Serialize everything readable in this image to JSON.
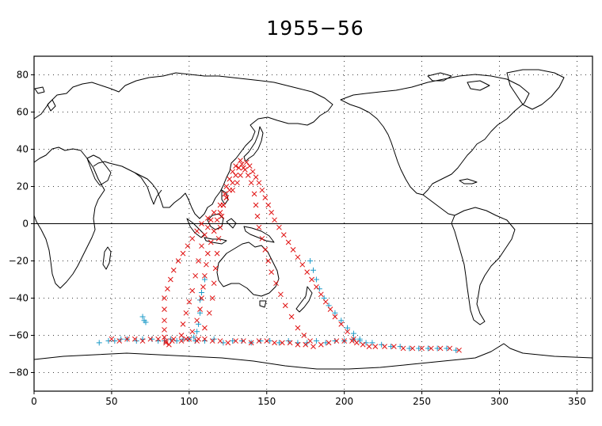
{
  "chart_data": {
    "type": "scatter",
    "title": "1955−56",
    "xlabel": "",
    "ylabel": "",
    "xlim": [
      0,
      360
    ],
    "ylim": [
      -90,
      90
    ],
    "x_ticks": [
      "0",
      "50",
      "100",
      "150",
      "200",
      "250",
      "300",
      "350"
    ],
    "x_tick_values": [
      0,
      50,
      100,
      150,
      200,
      250,
      300,
      350
    ],
    "y_ticks": [
      "80",
      "60",
      "40",
      "20",
      "0",
      "−20",
      "−40",
      "−60",
      "−80"
    ],
    "y_tick_values": [
      80,
      60,
      40,
      20,
      0,
      -20,
      -40,
      -60,
      -80
    ],
    "grid": true,
    "legend": "none",
    "series": [
      {
        "marker": "plus",
        "color": "#1e9bc8",
        "points": [
          [
            42,
            -64
          ],
          [
            48,
            -63
          ],
          [
            52,
            -63
          ],
          [
            56,
            -62
          ],
          [
            60,
            -62
          ],
          [
            66,
            -63
          ],
          [
            70,
            -62
          ],
          [
            70,
            -50
          ],
          [
            71,
            -52
          ],
          [
            72,
            -53
          ],
          [
            76,
            -62
          ],
          [
            80,
            -63
          ],
          [
            84,
            -63
          ],
          [
            88,
            -62
          ],
          [
            92,
            -63
          ],
          [
            96,
            -62
          ],
          [
            100,
            -62
          ],
          [
            103,
            -61
          ],
          [
            105,
            -58
          ],
          [
            106,
            -54
          ],
          [
            107,
            -48
          ],
          [
            107,
            -41
          ],
          [
            108,
            -37
          ],
          [
            110,
            -30
          ],
          [
            104,
            -63
          ],
          [
            110,
            -63
          ],
          [
            116,
            -62
          ],
          [
            122,
            -64
          ],
          [
            128,
            -63
          ],
          [
            134,
            -63
          ],
          [
            140,
            -64
          ],
          [
            146,
            -63
          ],
          [
            152,
            -63
          ],
          [
            158,
            -64
          ],
          [
            164,
            -63
          ],
          [
            170,
            -64
          ],
          [
            176,
            -64
          ],
          [
            182,
            -63
          ],
          [
            188,
            -64
          ],
          [
            194,
            -63
          ],
          [
            200,
            -63
          ],
          [
            206,
            -62
          ],
          [
            210,
            -63
          ],
          [
            214,
            -64
          ],
          [
            218,
            -64
          ],
          [
            224,
            -65
          ],
          [
            230,
            -66
          ],
          [
            236,
            -66
          ],
          [
            242,
            -67
          ],
          [
            248,
            -67
          ],
          [
            254,
            -67
          ],
          [
            260,
            -67
          ],
          [
            266,
            -67
          ],
          [
            272,
            -68
          ],
          [
            178,
            -20
          ],
          [
            180,
            -25
          ],
          [
            182,
            -30
          ],
          [
            184,
            -35
          ],
          [
            187,
            -40
          ],
          [
            190,
            -44
          ],
          [
            194,
            -48
          ],
          [
            198,
            -52
          ],
          [
            202,
            -56
          ],
          [
            206,
            -59
          ],
          [
            210,
            -62
          ]
        ]
      },
      {
        "marker": "x",
        "color": "#e01010",
        "points": [
          [
            50,
            -62
          ],
          [
            55,
            -63
          ],
          [
            60,
            -62
          ],
          [
            65,
            -62
          ],
          [
            70,
            -63
          ],
          [
            75,
            -62
          ],
          [
            80,
            -62
          ],
          [
            85,
            -63
          ],
          [
            90,
            -62
          ],
          [
            95,
            -63
          ],
          [
            100,
            -62
          ],
          [
            105,
            -63
          ],
          [
            110,
            -62
          ],
          [
            115,
            -63
          ],
          [
            120,
            -63
          ],
          [
            125,
            -64
          ],
          [
            130,
            -63
          ],
          [
            135,
            -63
          ],
          [
            140,
            -64
          ],
          [
            145,
            -63
          ],
          [
            150,
            -63
          ],
          [
            155,
            -64
          ],
          [
            160,
            -64
          ],
          [
            165,
            -64
          ],
          [
            170,
            -65
          ],
          [
            175,
            -65
          ],
          [
            180,
            -66
          ],
          [
            185,
            -65
          ],
          [
            190,
            -64
          ],
          [
            195,
            -63
          ],
          [
            200,
            -63
          ],
          [
            205,
            -63
          ],
          [
            208,
            -64
          ],
          [
            212,
            -65
          ],
          [
            216,
            -66
          ],
          [
            220,
            -66
          ],
          [
            226,
            -66
          ],
          [
            232,
            -66
          ],
          [
            238,
            -67
          ],
          [
            244,
            -67
          ],
          [
            250,
            -67
          ],
          [
            256,
            -67
          ],
          [
            262,
            -67
          ],
          [
            268,
            -67
          ],
          [
            274,
            -68
          ],
          [
            85,
            -64
          ],
          [
            87,
            -65
          ],
          [
            89,
            -63
          ],
          [
            84,
            -61
          ],
          [
            84,
            -57
          ],
          [
            84,
            -52
          ],
          [
            84,
            -46
          ],
          [
            84,
            -40
          ],
          [
            86,
            -35
          ],
          [
            88,
            -30
          ],
          [
            90,
            -25
          ],
          [
            93,
            -20
          ],
          [
            96,
            -16
          ],
          [
            99,
            -12
          ],
          [
            102,
            -8
          ],
          [
            105,
            -4
          ],
          [
            108,
            0
          ],
          [
            112,
            3
          ],
          [
            116,
            6
          ],
          [
            120,
            10
          ],
          [
            124,
            14
          ],
          [
            128,
            18
          ],
          [
            131,
            22
          ],
          [
            133,
            26
          ],
          [
            135,
            30
          ],
          [
            137,
            33
          ],
          [
            139,
            31
          ],
          [
            141,
            28
          ],
          [
            143,
            25
          ],
          [
            145,
            22
          ],
          [
            147,
            18
          ],
          [
            149,
            14
          ],
          [
            151,
            10
          ],
          [
            153,
            6
          ],
          [
            155,
            2
          ],
          [
            158,
            -2
          ],
          [
            161,
            -6
          ],
          [
            164,
            -10
          ],
          [
            167,
            -14
          ],
          [
            170,
            -18
          ],
          [
            173,
            -22
          ],
          [
            176,
            -26
          ],
          [
            179,
            -30
          ],
          [
            182,
            -34
          ],
          [
            185,
            -38
          ],
          [
            188,
            -42
          ],
          [
            191,
            -46
          ],
          [
            194,
            -50
          ],
          [
            198,
            -54
          ],
          [
            202,
            -58
          ],
          [
            206,
            -62
          ],
          [
            98,
            -62
          ],
          [
            102,
            -58
          ],
          [
            105,
            -52
          ],
          [
            107,
            -46
          ],
          [
            108,
            -40
          ],
          [
            109,
            -34
          ],
          [
            110,
            -28
          ],
          [
            111,
            -22
          ],
          [
            112,
            -16
          ],
          [
            114,
            -10
          ],
          [
            116,
            -4
          ],
          [
            118,
            2
          ],
          [
            120,
            6
          ],
          [
            122,
            10
          ],
          [
            124,
            14
          ],
          [
            126,
            18
          ],
          [
            128,
            22
          ],
          [
            130,
            26
          ],
          [
            132,
            30
          ],
          [
            134,
            32
          ],
          [
            136,
            29
          ],
          [
            138,
            26
          ],
          [
            140,
            22
          ],
          [
            142,
            16
          ],
          [
            143,
            10
          ],
          [
            144,
            4
          ],
          [
            145,
            -2
          ],
          [
            147,
            -8
          ],
          [
            149,
            -14
          ],
          [
            151,
            -20
          ],
          [
            153,
            -26
          ],
          [
            156,
            -32
          ],
          [
            159,
            -38
          ],
          [
            162,
            -44
          ],
          [
            166,
            -50
          ],
          [
            170,
            -56
          ],
          [
            174,
            -60
          ],
          [
            178,
            -63
          ],
          [
            106,
            -62
          ],
          [
            110,
            -56
          ],
          [
            113,
            -48
          ],
          [
            115,
            -40
          ],
          [
            116,
            -32
          ],
          [
            117,
            -24
          ],
          [
            118,
            -16
          ],
          [
            119,
            -8
          ],
          [
            120,
            -2
          ],
          [
            121,
            4
          ],
          [
            122,
            10
          ],
          [
            123,
            16
          ],
          [
            124,
            20
          ],
          [
            126,
            24
          ],
          [
            128,
            28
          ],
          [
            130,
            31
          ],
          [
            133,
            34
          ],
          [
            95,
            -60
          ],
          [
            96,
            -54
          ],
          [
            98,
            -48
          ],
          [
            100,
            -42
          ],
          [
            102,
            -36
          ],
          [
            104,
            -28
          ],
          [
            106,
            -20
          ],
          [
            108,
            -12
          ],
          [
            110,
            -6
          ],
          [
            112,
            -2
          ],
          [
            114,
            2
          ]
        ]
      }
    ]
  }
}
